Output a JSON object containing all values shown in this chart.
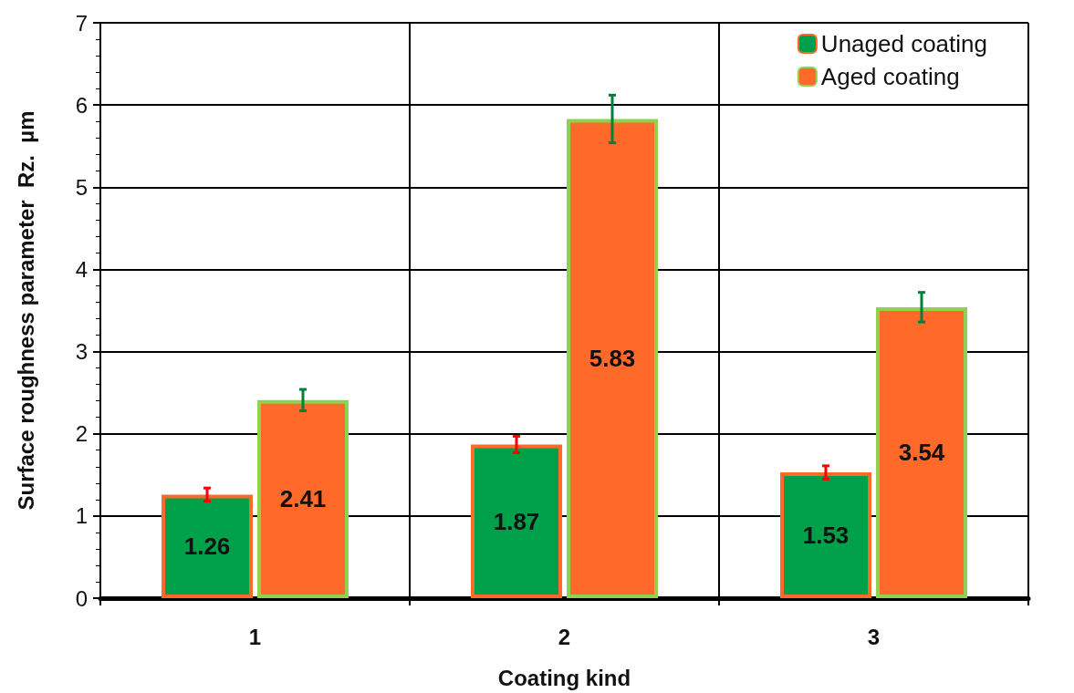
{
  "chart_data": {
    "type": "bar",
    "xlabel": "Coating kind",
    "ylabel": "Surface roughness parameter  Rz.  µm",
    "categories": [
      "1",
      "2",
      "3"
    ],
    "series": [
      {
        "name": "Unaged coating",
        "color": "#00a04a",
        "values": [
          1.26,
          1.87,
          1.53
        ],
        "errors": [
          0.08,
          0.1,
          0.08
        ]
      },
      {
        "name": "Aged coating",
        "color": "#ff6a2a",
        "values": [
          2.41,
          5.83,
          3.54
        ],
        "errors": [
          0.13,
          0.29,
          0.18
        ]
      }
    ],
    "ylim": [
      0,
      7
    ],
    "yticks": [
      0,
      1,
      2,
      3,
      4,
      5,
      6,
      7
    ],
    "grid": true,
    "legend": "top right",
    "data_labels": true
  }
}
